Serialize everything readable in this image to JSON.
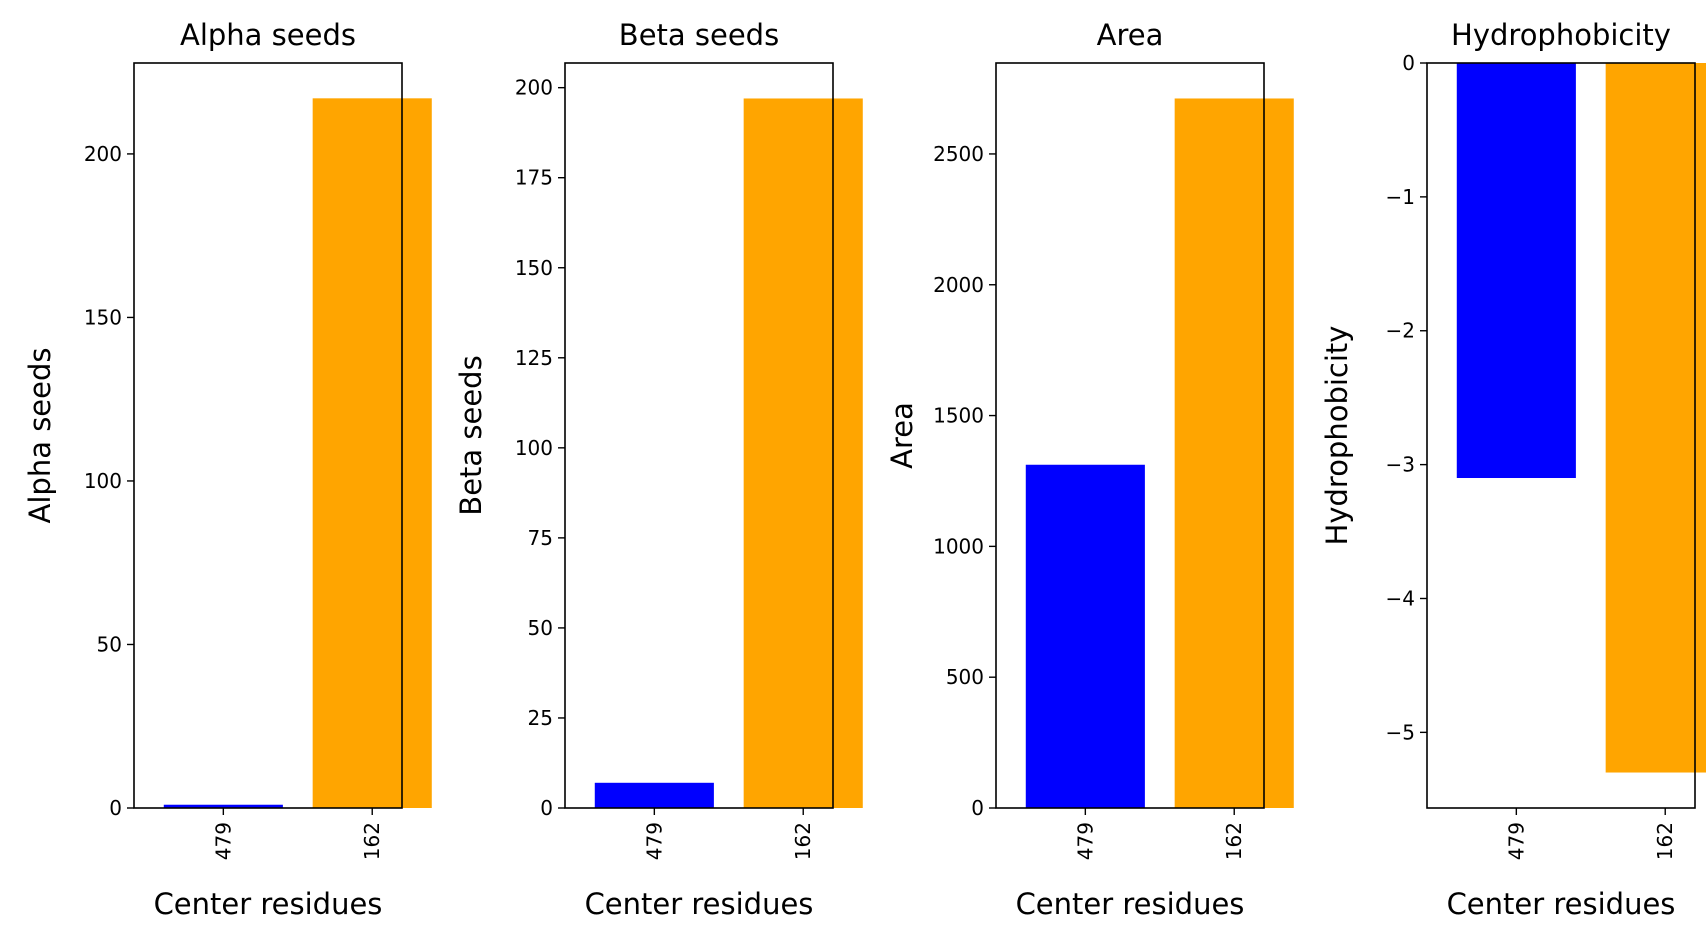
{
  "chart_data": [
    {
      "type": "bar",
      "title": "Alpha seeds",
      "xlabel": "Center residues",
      "ylabel": "Alpha seeds",
      "categories": [
        "479",
        "162"
      ],
      "values": [
        1,
        217
      ],
      "colors": [
        "#0000ff",
        "#ffa500"
      ],
      "ylim": [
        0,
        227.8
      ],
      "yticks": [
        0,
        50,
        100,
        150,
        200
      ],
      "ytick_labels": [
        "0",
        "50",
        "100",
        "150",
        "200"
      ],
      "grid": false
    },
    {
      "type": "bar",
      "title": "Beta seeds",
      "xlabel": "Center residues",
      "ylabel": "Beta seeds",
      "categories": [
        "479",
        "162"
      ],
      "values": [
        7,
        197
      ],
      "colors": [
        "#0000ff",
        "#ffa500"
      ],
      "ylim": [
        0,
        206.85
      ],
      "yticks": [
        0,
        25,
        50,
        75,
        100,
        125,
        150,
        175,
        200
      ],
      "ytick_labels": [
        "0",
        "25",
        "50",
        "75",
        "100",
        "125",
        "150",
        "175",
        "200"
      ],
      "grid": false
    },
    {
      "type": "bar",
      "title": "Area",
      "xlabel": "Center residues",
      "ylabel": "Area",
      "categories": [
        "479",
        "162"
      ],
      "values": [
        1312,
        2712
      ],
      "colors": [
        "#0000ff",
        "#ffa500"
      ],
      "ylim": [
        0,
        2847.6
      ],
      "yticks": [
        0,
        500,
        1000,
        1500,
        2000,
        2500
      ],
      "ytick_labels": [
        "0",
        "500",
        "1000",
        "1500",
        "2000",
        "2500"
      ],
      "grid": false
    },
    {
      "type": "bar",
      "title": "Hydrophobicity",
      "xlabel": "Center residues",
      "ylabel": "Hydrophobicity",
      "categories": [
        "479",
        "162"
      ],
      "values": [
        -3.1,
        -5.3
      ],
      "colors": [
        "#0000ff",
        "#ffa500"
      ],
      "ylim": [
        -5.565,
        0
      ],
      "yticks": [
        0,
        -1,
        -2,
        -3,
        -4,
        -5
      ],
      "ytick_labels": [
        "0",
        "−1",
        "−2",
        "−3",
        "−4",
        "−5"
      ],
      "grid": false
    }
  ]
}
